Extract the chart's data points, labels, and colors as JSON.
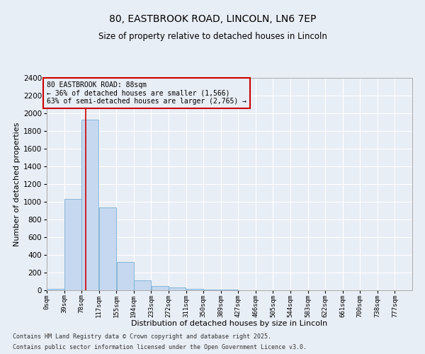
{
  "title_line1": "80, EASTBROOK ROAD, LINCOLN, LN6 7EP",
  "title_line2": "Size of property relative to detached houses in Lincoln",
  "xlabel": "Distribution of detached houses by size in Lincoln",
  "ylabel": "Number of detached properties",
  "bar_labels": [
    "0sqm",
    "39sqm",
    "78sqm",
    "117sqm",
    "155sqm",
    "194sqm",
    "233sqm",
    "272sqm",
    "311sqm",
    "350sqm",
    "389sqm",
    "427sqm",
    "466sqm",
    "505sqm",
    "544sqm",
    "583sqm",
    "622sqm",
    "661sqm",
    "700sqm",
    "738sqm",
    "777sqm"
  ],
  "bar_heights": [
    20,
    1030,
    1930,
    935,
    320,
    110,
    50,
    30,
    20,
    10,
    5,
    0,
    0,
    0,
    0,
    0,
    0,
    0,
    0,
    0,
    0
  ],
  "bar_color": "#c5d8ef",
  "bar_edge_color": "#7aafd4",
  "ylim": [
    0,
    2400
  ],
  "yticks": [
    0,
    200,
    400,
    600,
    800,
    1000,
    1200,
    1400,
    1600,
    1800,
    2000,
    2200,
    2400
  ],
  "vline_x": 88,
  "vline_color": "#cc0000",
  "annotation_text": "80 EASTBROOK ROAD: 88sqm\n← 36% of detached houses are smaller (1,566)\n63% of semi-detached houses are larger (2,765) →",
  "annotation_box_color": "#cc0000",
  "footer_line1": "Contains HM Land Registry data © Crown copyright and database right 2025.",
  "footer_line2": "Contains public sector information licensed under the Open Government Licence v3.0.",
  "bg_color": "#e8eef5",
  "grid_color": "#ffffff",
  "bin_width": 39,
  "property_size_sqm": 88
}
